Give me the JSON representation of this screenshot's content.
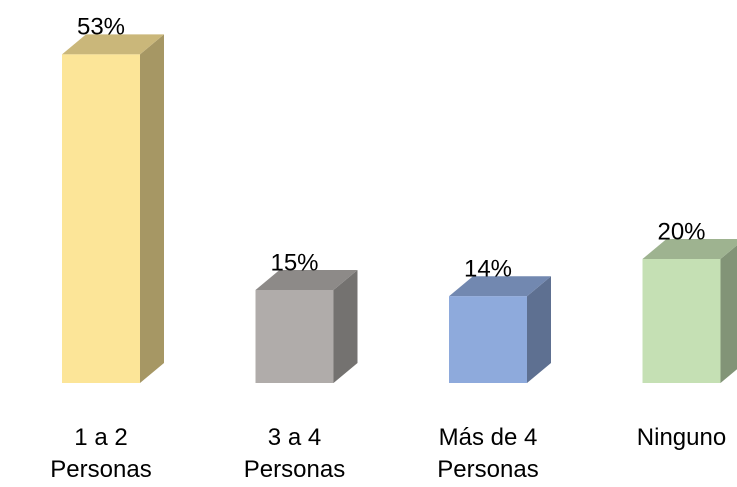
{
  "chart_data": {
    "type": "bar3d",
    "categories": [
      "1 a 2 Personas",
      "3 a 4 Personas",
      "Más de 4 Personas",
      "Ninguno"
    ],
    "values": [
      53,
      15,
      14,
      20
    ],
    "value_labels": [
      "53%",
      "15%",
      "14%",
      "20%"
    ],
    "colors": [
      "#fce598",
      "#b0acaa",
      "#8eaadc",
      "#c5e0b4"
    ]
  }
}
